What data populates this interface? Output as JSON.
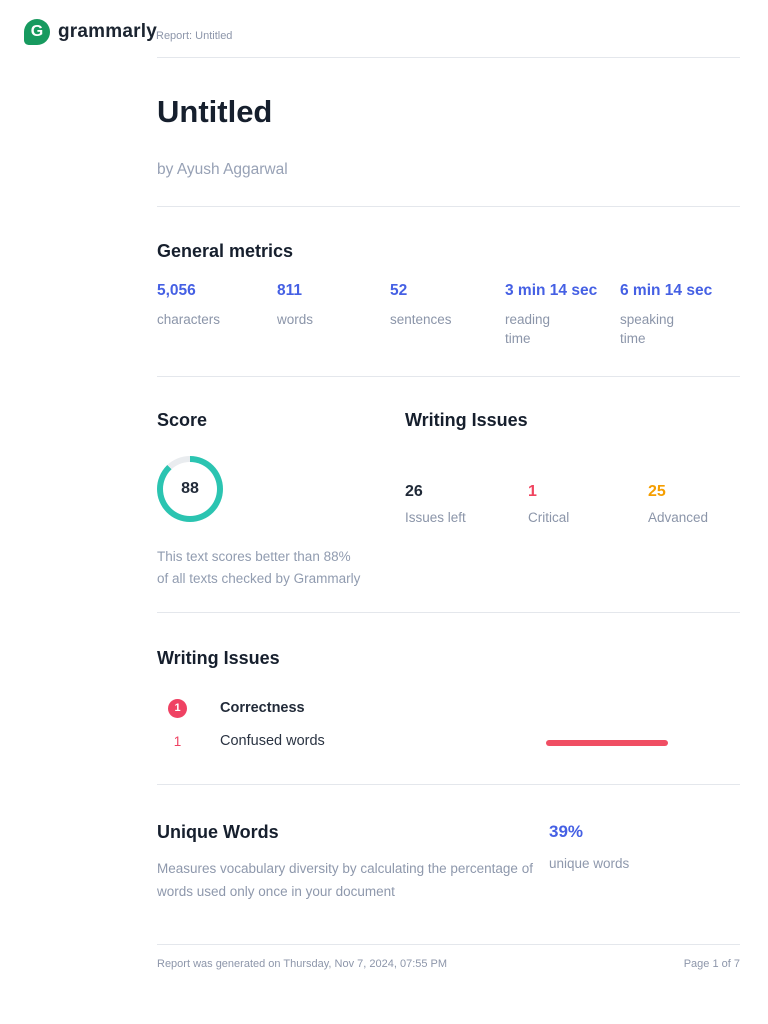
{
  "header": {
    "brand": "grammarly",
    "logo_letter": "G",
    "report_label": "Report: Untitled"
  },
  "document": {
    "title": "Untitled",
    "author_line": "by Ayush Aggarwal"
  },
  "general_metrics": {
    "heading": "General metrics",
    "items": [
      {
        "value": "5,056",
        "label": "characters"
      },
      {
        "value": "811",
        "label": "words"
      },
      {
        "value": "52",
        "label": "sentences"
      },
      {
        "value": "3 min 14 sec",
        "label": "reading time"
      },
      {
        "value": "6 min 14 sec",
        "label": "speaking time"
      }
    ]
  },
  "score": {
    "heading": "Score",
    "value": "88",
    "percent": 88,
    "caption_line1": "This text scores better than 88%",
    "caption_line2": "of all texts checked by Grammarly"
  },
  "writing_issues_summary": {
    "heading": "Writing Issues",
    "stats": [
      {
        "value": "26",
        "label": "Issues left"
      },
      {
        "value": "1",
        "label": "Critical"
      },
      {
        "value": "25",
        "label": "Advanced"
      }
    ]
  },
  "writing_issues_detail": {
    "heading": "Writing Issues",
    "category_badge": "1",
    "category_name": "Correctness",
    "item_count": "1",
    "item_label": "Confused words"
  },
  "unique_words": {
    "heading": "Unique Words",
    "description": "Measures vocabulary diversity by calculating the percentage of words used only once in your document",
    "value": "39%",
    "label": "unique words"
  },
  "footer": {
    "generated": "Report was generated on Thursday, Nov 7, 2024, 07:55 PM",
    "page": "Page 1 of 7"
  },
  "colors": {
    "brand_green": "#179a5f",
    "accent_blue": "#4560e4",
    "score_teal": "#2bc4b1",
    "ring_remainder": "#e9ecef",
    "critical_pink": "#ef4263",
    "advanced_orange": "#f59e00"
  }
}
